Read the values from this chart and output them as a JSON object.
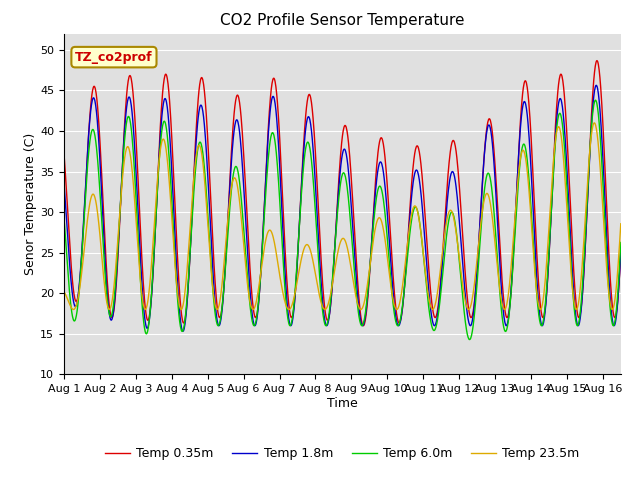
{
  "title": "CO2 Profile Sensor Temperature",
  "xlabel": "Time",
  "ylabel": "Senor Temperature (C)",
  "ylim": [
    10,
    52
  ],
  "xlim_days": 15.5,
  "x_tick_labels": [
    "Aug 1",
    "Aug 2",
    "Aug 3",
    "Aug 4",
    "Aug 5",
    "Aug 6",
    "Aug 7",
    "Aug 8",
    "Aug 9",
    "Aug 10",
    "Aug 11",
    "Aug 12",
    "Aug 13",
    "Aug 14",
    "Aug 15",
    "Aug 16"
  ],
  "annotation_text": "TZ_co2prof",
  "legend_labels": [
    "Temp 0.35m",
    "Temp 1.8m",
    "Temp 6.0m",
    "Temp 23.5m"
  ],
  "line_colors": [
    "#dd0000",
    "#0000cc",
    "#00cc00",
    "#ddaa00"
  ],
  "background_color": "#e0e0e0",
  "title_fontsize": 11,
  "axis_fontsize": 9,
  "tick_fontsize": 8,
  "legend_fontsize": 9,
  "red_peaks": [
    43,
    46,
    47,
    47,
    46.5,
    44,
    47,
    44,
    40,
    39,
    38,
    39,
    42,
    47,
    47,
    49,
    49
  ],
  "red_troughs": [
    20,
    17,
    17,
    16,
    17,
    17,
    17,
    17,
    16,
    16,
    17,
    17,
    17,
    17,
    17,
    17,
    17
  ],
  "blue_peaks": [
    40,
    45,
    44,
    44,
    43,
    41,
    45,
    41,
    37,
    36,
    35,
    35,
    42,
    44,
    44,
    46,
    46
  ],
  "blue_troughs": [
    19,
    17,
    16,
    15,
    16,
    16,
    16,
    16,
    16,
    16,
    16,
    16,
    16,
    16,
    16,
    16,
    16
  ],
  "green_peaks": [
    37,
    41,
    42,
    41,
    38,
    35,
    41,
    38,
    34,
    33,
    30,
    30,
    36,
    39,
    43,
    44,
    44
  ],
  "green_troughs": [
    16,
    18,
    15,
    15,
    16,
    16,
    16,
    16,
    16,
    16,
    16,
    14,
    15,
    16,
    16,
    16,
    16
  ],
  "orange_peaks": [
    22,
    35,
    39,
    39,
    38,
    33,
    26,
    26,
    27,
    30,
    31,
    30,
    33,
    39,
    41,
    41,
    41
  ],
  "orange_troughs": [
    18,
    18,
    18,
    18,
    18,
    18,
    18,
    18,
    18,
    18,
    18,
    18,
    18,
    18,
    18,
    18,
    18
  ],
  "red_phase": 0.0,
  "blue_phase": 0.02,
  "green_phase": 0.04,
  "orange_phase": 0.07
}
